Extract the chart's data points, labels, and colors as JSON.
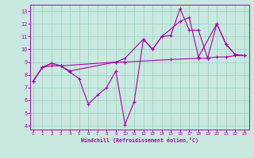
{
  "xlabel": "Windchill (Refroidissement éolien,°C)",
  "bg_color": "#c8e8e0",
  "line_color": "#aa00aa",
  "grid_color": "#9ecfbf",
  "series1": {
    "points": [
      [
        0,
        7.5
      ],
      [
        1,
        8.6
      ],
      [
        2,
        8.9
      ],
      [
        3,
        8.7
      ],
      [
        4,
        8.2
      ],
      [
        5,
        7.7
      ],
      [
        6,
        5.7
      ],
      [
        7,
        6.4
      ],
      [
        8,
        7.0
      ],
      [
        9,
        8.3
      ],
      [
        10,
        4.1
      ],
      [
        11,
        5.9
      ],
      [
        12,
        10.8
      ],
      [
        13,
        10.0
      ],
      [
        14,
        11.0
      ],
      [
        15,
        11.1
      ],
      [
        16,
        13.2
      ],
      [
        17,
        11.5
      ],
      [
        18,
        11.5
      ],
      [
        19,
        9.3
      ],
      [
        20,
        12.0
      ],
      [
        21,
        10.4
      ],
      [
        22,
        9.6
      ],
      [
        23,
        9.5
      ]
    ]
  },
  "series2": {
    "points": [
      [
        0,
        7.5
      ],
      [
        1,
        8.6
      ],
      [
        2,
        8.9
      ],
      [
        3,
        8.7
      ],
      [
        4,
        8.3
      ],
      [
        9,
        9.0
      ],
      [
        10,
        9.3
      ],
      [
        12,
        10.8
      ],
      [
        13,
        10.0
      ],
      [
        14,
        11.0
      ],
      [
        16,
        12.2
      ],
      [
        17,
        12.5
      ],
      [
        18,
        9.4
      ],
      [
        20,
        12.0
      ],
      [
        21,
        10.4
      ],
      [
        22,
        9.6
      ],
      [
        23,
        9.5
      ]
    ]
  },
  "series3": {
    "points": [
      [
        0,
        7.5
      ],
      [
        1,
        8.6
      ],
      [
        2,
        8.7
      ],
      [
        3,
        8.7
      ],
      [
        9,
        9.0
      ],
      [
        10,
        9.0
      ],
      [
        15,
        9.2
      ],
      [
        18,
        9.3
      ],
      [
        19,
        9.3
      ],
      [
        20,
        9.4
      ],
      [
        21,
        9.4
      ],
      [
        22,
        9.5
      ],
      [
        23,
        9.5
      ]
    ]
  },
  "ylim": [
    3.7,
    13.5
  ],
  "xlim": [
    -0.3,
    23.5
  ],
  "yticks": [
    4,
    5,
    6,
    7,
    8,
    9,
    10,
    11,
    12,
    13
  ],
  "xticks": [
    0,
    1,
    2,
    3,
    4,
    5,
    6,
    7,
    8,
    9,
    10,
    11,
    12,
    13,
    14,
    15,
    16,
    17,
    18,
    19,
    20,
    21,
    22,
    23
  ]
}
